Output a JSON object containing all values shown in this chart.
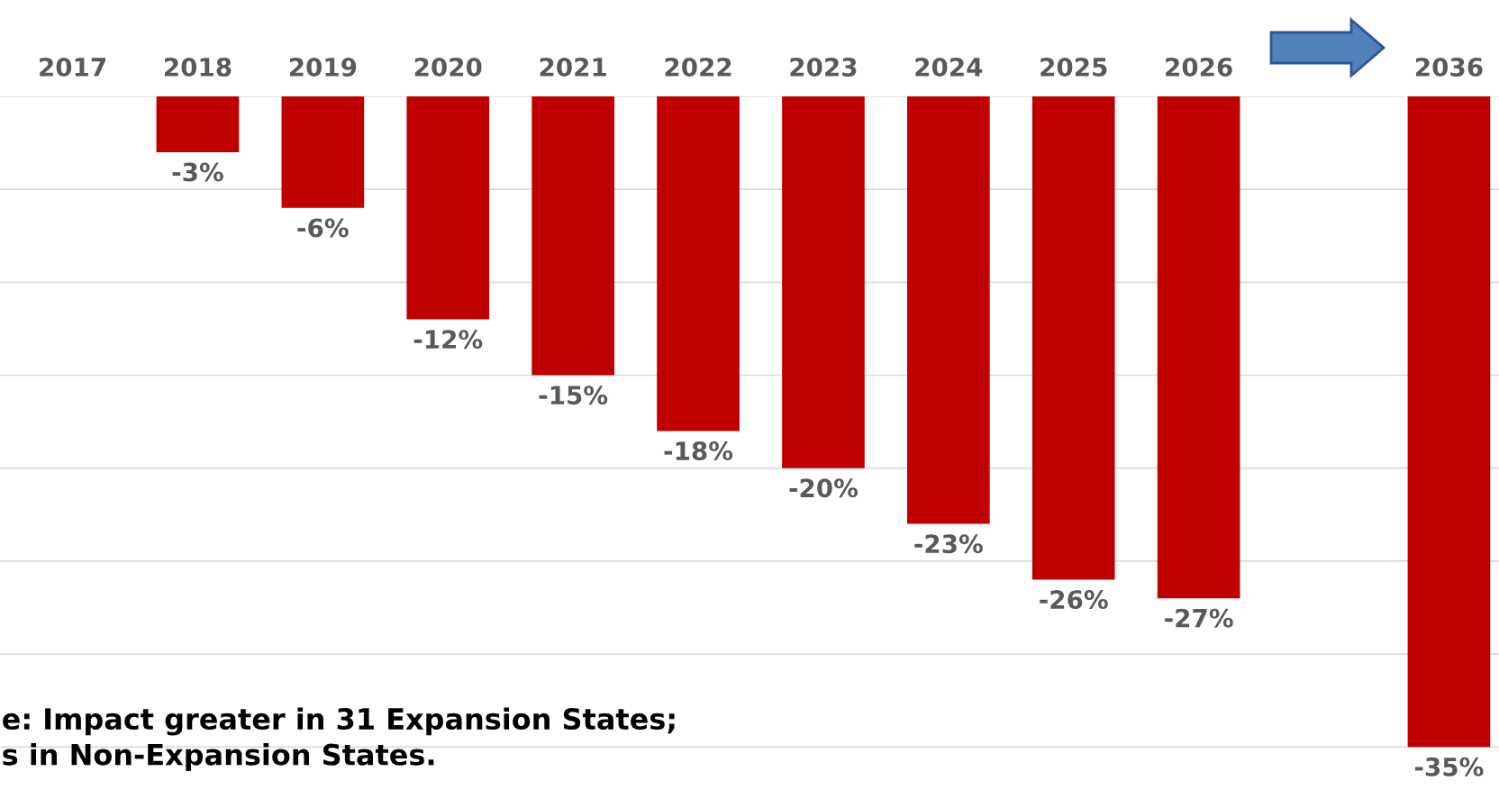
{
  "chart_data": {
    "type": "bar",
    "categories": [
      "2017",
      "2018",
      "2019",
      "2020",
      "2021",
      "2022",
      "2023",
      "2024",
      "2025",
      "2026",
      null,
      "2036"
    ],
    "values": [
      null,
      -3,
      -6,
      -12,
      -15,
      -18,
      -20,
      -23,
      -26,
      -27,
      null,
      -35
    ],
    "value_labels": [
      null,
      "-3%",
      "-6%",
      "-12%",
      "-15%",
      "-18%",
      "-20%",
      "-23%",
      "-26%",
      "-27%",
      null,
      "-35%"
    ],
    "color": "#c00000",
    "yticks": [
      {
        "value": 0,
        "label": null
      },
      {
        "value": -5,
        "label": null
      },
      {
        "value": -10,
        "label": null
      },
      {
        "value": -15,
        "label": null
      },
      {
        "value": -20,
        "label": null
      },
      {
        "value": -25,
        "label": null
      },
      {
        "value": -30,
        "label": null
      },
      {
        "value": -35,
        "label": null
      }
    ],
    "grid": "y",
    "tick_labels": "x",
    "annotations": [
      "e: Impact greater in 31 Expansion States;\ns in Non-Expansion States."
    ]
  }
}
